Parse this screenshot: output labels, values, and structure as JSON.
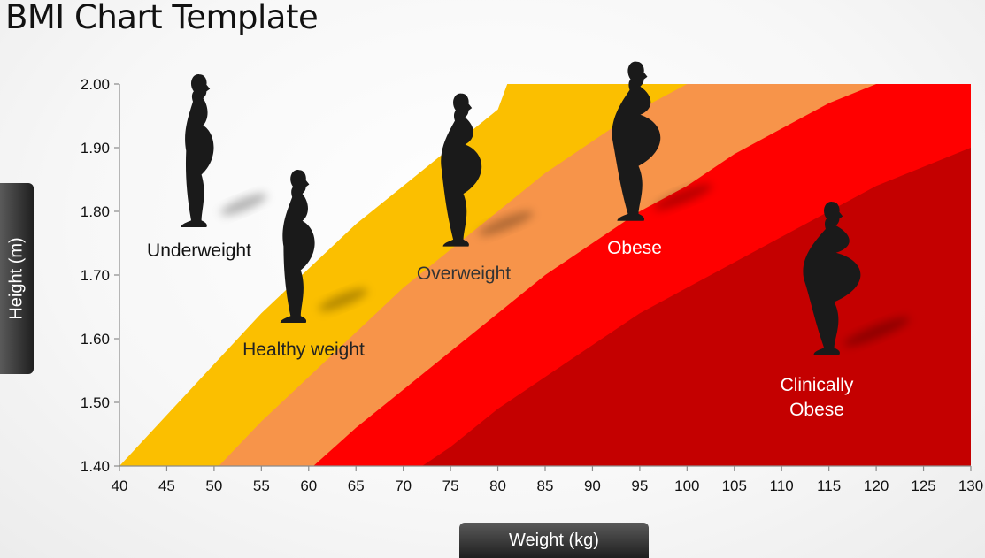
{
  "title": "BMI Chart Template",
  "chart_data": {
    "type": "area",
    "xlabel": "Weight (kg)",
    "ylabel": "Height (m)",
    "xlim": [
      40,
      130
    ],
    "ylim": [
      1.4,
      2.0
    ],
    "x_ticks": [
      "40",
      "45",
      "50",
      "55",
      "60",
      "65",
      "70",
      "75",
      "80",
      "85",
      "90",
      "95",
      "100",
      "105",
      "110",
      "115",
      "120",
      "125",
      "130"
    ],
    "y_ticks": [
      "1.40",
      "1.50",
      "1.60",
      "1.70",
      "1.80",
      "1.90",
      "2.00"
    ],
    "zones": [
      {
        "name": "Underweight",
        "label": "Underweight",
        "color": "#ffffff",
        "lower_boundary": []
      },
      {
        "name": "Healthy weight",
        "label": "Healthy weight",
        "color": "#FBBF00",
        "lower_boundary": [
          [
            40.0,
            1.4
          ],
          [
            45.0,
            1.48
          ],
          [
            50.0,
            1.56
          ],
          [
            55.0,
            1.64
          ],
          [
            60.0,
            1.71
          ],
          [
            65.0,
            1.78
          ],
          [
            70.0,
            1.84
          ],
          [
            75.0,
            1.9
          ],
          [
            80.0,
            1.96
          ],
          [
            81.0,
            2.0
          ]
        ]
      },
      {
        "name": "Overweight",
        "label": "Overweight",
        "color": "#F7944A",
        "lower_boundary": [
          [
            50.5,
            1.4
          ],
          [
            55.0,
            1.47
          ],
          [
            60.0,
            1.54
          ],
          [
            65.0,
            1.61
          ],
          [
            70.0,
            1.68
          ],
          [
            75.0,
            1.74
          ],
          [
            80.0,
            1.8
          ],
          [
            85.0,
            1.86
          ],
          [
            90.0,
            1.91
          ],
          [
            95.0,
            1.96
          ],
          [
            100.0,
            2.0
          ]
        ]
      },
      {
        "name": "Obese",
        "label": "Obese",
        "color": "#FF0000",
        "lower_boundary": [
          [
            60.5,
            1.4
          ],
          [
            65.0,
            1.46
          ],
          [
            70.0,
            1.52
          ],
          [
            75.0,
            1.58
          ],
          [
            80.0,
            1.64
          ],
          [
            85.0,
            1.7
          ],
          [
            90.0,
            1.75
          ],
          [
            95.0,
            1.8
          ],
          [
            100.0,
            1.84
          ],
          [
            105.0,
            1.89
          ],
          [
            110.0,
            1.93
          ],
          [
            115.0,
            1.97
          ],
          [
            120.0,
            2.0
          ]
        ]
      },
      {
        "name": "Clinically Obese",
        "label": "Clinically\nObese",
        "color": "#C40000",
        "lower_boundary": [
          [
            72.0,
            1.4
          ],
          [
            75.0,
            1.43
          ],
          [
            80.0,
            1.49
          ],
          [
            85.0,
            1.54
          ],
          [
            90.0,
            1.59
          ],
          [
            95.0,
            1.64
          ],
          [
            100.0,
            1.68
          ],
          [
            105.0,
            1.72
          ],
          [
            110.0,
            1.76
          ],
          [
            115.0,
            1.8
          ],
          [
            120.0,
            1.84
          ],
          [
            125.0,
            1.87
          ],
          [
            130.0,
            1.9
          ]
        ]
      }
    ],
    "grid": false,
    "legend": "none"
  },
  "figures": [
    {
      "name": "underweight-figure",
      "x": 48.3,
      "y": 1.775,
      "height_m": 0.24,
      "fat": 0.0
    },
    {
      "name": "healthy-weight-figure",
      "x": 58.8,
      "y": 1.625,
      "height_m": 0.24,
      "fat": 0.12
    },
    {
      "name": "overweight-figure",
      "x": 76.0,
      "y": 1.745,
      "height_m": 0.24,
      "fat": 0.42
    },
    {
      "name": "obese-figure",
      "x": 94.5,
      "y": 1.785,
      "height_m": 0.25,
      "fat": 0.62
    },
    {
      "name": "clinically-obese-figure",
      "x": 115.2,
      "y": 1.575,
      "height_m": 0.24,
      "fat": 1.0
    }
  ]
}
